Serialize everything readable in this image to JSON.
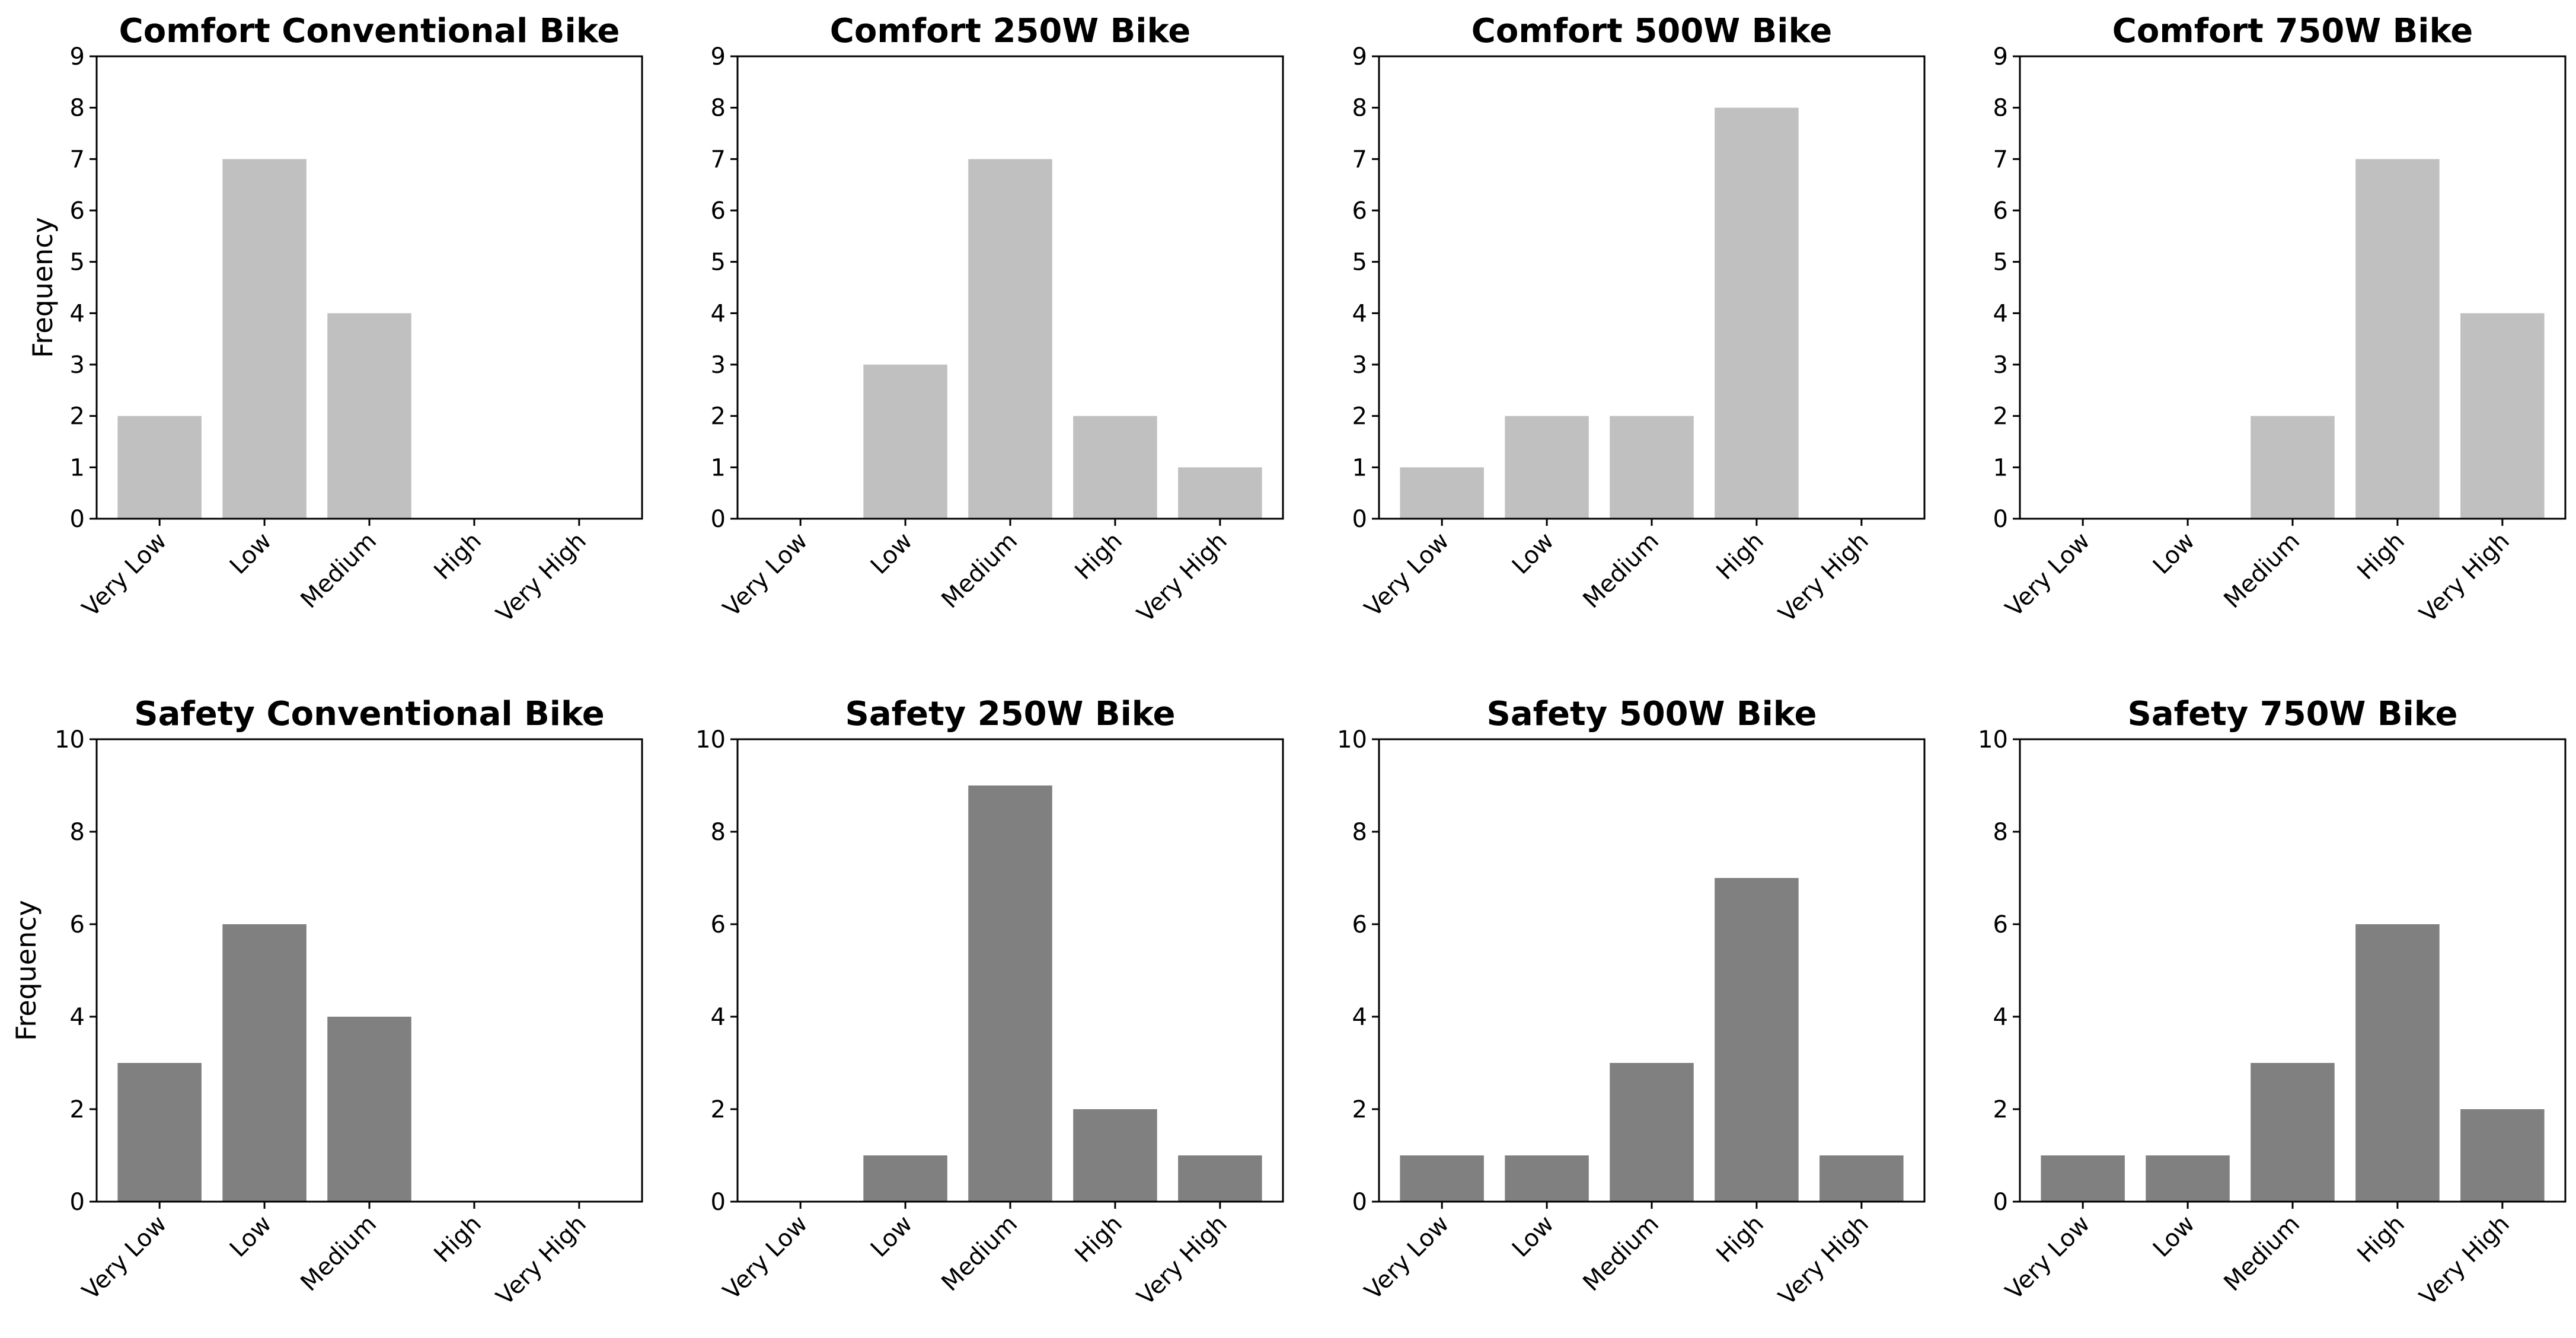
{
  "chart_data": [
    {
      "type": "bar",
      "title": "Comfort Conventional Bike",
      "categories": [
        "Very Low",
        "Low",
        "Medium",
        "High",
        "Very High"
      ],
      "values": [
        2,
        7,
        4,
        0,
        0
      ],
      "ylabel": "Frequency",
      "xlabel": "",
      "ylim": [
        0,
        9
      ],
      "yticks": [
        0,
        1,
        2,
        3,
        4,
        5,
        6,
        7,
        8,
        9
      ],
      "color": "#c0c0c0"
    },
    {
      "type": "bar",
      "title": "Comfort 250W Bike",
      "categories": [
        "Very Low",
        "Low",
        "Medium",
        "High",
        "Very High"
      ],
      "values": [
        0,
        3,
        7,
        2,
        1
      ],
      "ylabel": "",
      "xlabel": "",
      "ylim": [
        0,
        9
      ],
      "yticks": [
        0,
        1,
        2,
        3,
        4,
        5,
        6,
        7,
        8,
        9
      ],
      "color": "#c0c0c0"
    },
    {
      "type": "bar",
      "title": "Comfort 500W Bike",
      "categories": [
        "Very Low",
        "Low",
        "Medium",
        "High",
        "Very High"
      ],
      "values": [
        1,
        2,
        2,
        8,
        0
      ],
      "ylabel": "",
      "xlabel": "",
      "ylim": [
        0,
        9
      ],
      "yticks": [
        0,
        1,
        2,
        3,
        4,
        5,
        6,
        7,
        8,
        9
      ],
      "color": "#c0c0c0"
    },
    {
      "type": "bar",
      "title": "Comfort 750W Bike",
      "categories": [
        "Very Low",
        "Low",
        "Medium",
        "High",
        "Very High"
      ],
      "values": [
        0,
        0,
        2,
        7,
        4
      ],
      "ylabel": "",
      "xlabel": "",
      "ylim": [
        0,
        9
      ],
      "yticks": [
        0,
        1,
        2,
        3,
        4,
        5,
        6,
        7,
        8,
        9
      ],
      "color": "#c0c0c0"
    },
    {
      "type": "bar",
      "title": "Safety Conventional Bike",
      "categories": [
        "Very Low",
        "Low",
        "Medium",
        "High",
        "Very High"
      ],
      "values": [
        3,
        6,
        4,
        0,
        0
      ],
      "ylabel": "Frequency",
      "xlabel": "",
      "ylim": [
        0,
        10
      ],
      "yticks": [
        0,
        2,
        4,
        6,
        8,
        10
      ],
      "color": "#808080"
    },
    {
      "type": "bar",
      "title": "Safety 250W Bike",
      "categories": [
        "Very Low",
        "Low",
        "Medium",
        "High",
        "Very High"
      ],
      "values": [
        0,
        1,
        9,
        2,
        1
      ],
      "ylabel": "",
      "xlabel": "",
      "ylim": [
        0,
        10
      ],
      "yticks": [
        0,
        2,
        4,
        6,
        8,
        10
      ],
      "color": "#808080"
    },
    {
      "type": "bar",
      "title": "Safety 500W Bike",
      "categories": [
        "Very Low",
        "Low",
        "Medium",
        "High",
        "Very High"
      ],
      "values": [
        1,
        1,
        3,
        7,
        1
      ],
      "ylabel": "",
      "xlabel": "",
      "ylim": [
        0,
        10
      ],
      "yticks": [
        0,
        2,
        4,
        6,
        8,
        10
      ],
      "color": "#808080"
    },
    {
      "type": "bar",
      "title": "Safety 750W Bike",
      "categories": [
        "Very Low",
        "Low",
        "Medium",
        "High",
        "Very High"
      ],
      "values": [
        1,
        1,
        3,
        6,
        2
      ],
      "ylabel": "",
      "xlabel": "",
      "ylim": [
        0,
        10
      ],
      "yticks": [
        0,
        2,
        4,
        6,
        8,
        10
      ],
      "color": "#808080"
    }
  ]
}
